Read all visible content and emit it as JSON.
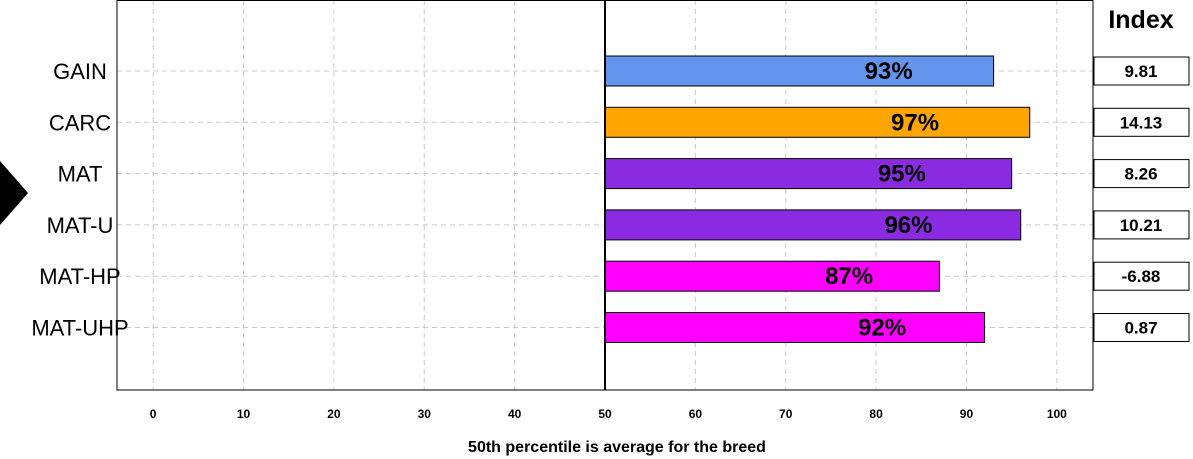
{
  "chart_data": {
    "type": "bar",
    "orientation": "horizontal",
    "xlabel": "50th percentile is average for the breed",
    "xlim": [
      -4,
      104
    ],
    "xticks": [
      0,
      10,
      20,
      30,
      40,
      50,
      60,
      70,
      80,
      90,
      100
    ],
    "baseline": 50,
    "grid": true,
    "categories": [
      "GAIN",
      "CARC",
      "MAT",
      "MAT-U",
      "MAT-HP",
      "MAT-UHP"
    ],
    "values": [
      93,
      97,
      95,
      96,
      87,
      92
    ],
    "value_labels": [
      "93%",
      "97%",
      "95%",
      "96%",
      "87%",
      "92%"
    ],
    "colors": [
      "#6495ED",
      "#FFA500",
      "#8A2BE2",
      "#8A2BE2",
      "#FF00FF",
      "#FF00FF"
    ],
    "index_title": "Index",
    "index_values": [
      "9.81",
      "14.13",
      "8.26",
      "10.21",
      "-6.88",
      "0.87"
    ]
  }
}
